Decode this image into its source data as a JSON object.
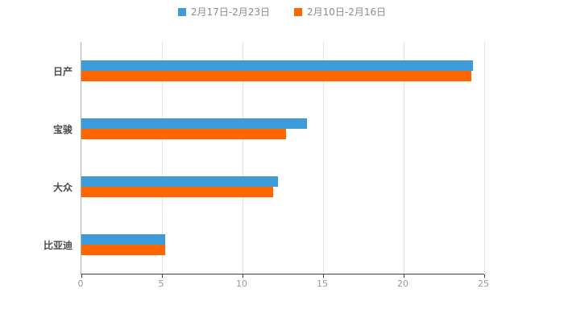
{
  "chart_data": {
    "type": "bar",
    "orientation": "horizontal",
    "title": "",
    "xlabel": "",
    "ylabel": "",
    "categories": [
      "日产",
      "宝骏",
      "大众",
      "比亚迪"
    ],
    "series": [
      {
        "name": "2月17日-2月23日",
        "color": "#3D9BD9",
        "values": [
          24.3,
          14.0,
          12.2,
          5.2
        ]
      },
      {
        "name": "2月10日-2月16日",
        "color": "#FF6600",
        "values": [
          24.2,
          12.7,
          11.9,
          5.2
        ]
      }
    ],
    "xlim": [
      0,
      25
    ],
    "xticks": [
      0,
      5,
      10,
      15,
      20,
      25
    ],
    "grid": true,
    "legend_position": "top",
    "colors": {
      "background": "#ffffff",
      "gridline": "#e4e4e4",
      "axis_line": "#404040",
      "tick_label": "#999999",
      "category_label": "#4a4a4a",
      "legend_text": "#8c8c8c"
    }
  }
}
